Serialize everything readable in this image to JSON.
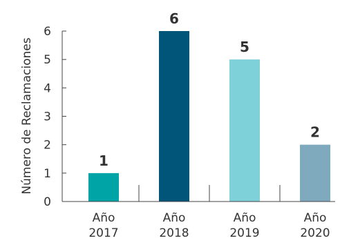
{
  "chart_data": {
    "type": "bar",
    "categories": [
      [
        "Año",
        "2017"
      ],
      [
        "Año",
        "2018"
      ],
      [
        "Año",
        "2019"
      ],
      [
        "Año",
        "2020"
      ]
    ],
    "values": [
      1,
      6,
      5,
      2
    ],
    "data_labels": [
      "1",
      "6",
      "5",
      "2"
    ],
    "bar_colors": [
      "#00a3a6",
      "#005579",
      "#7fd1d9",
      "#7fa9bd"
    ],
    "title": "",
    "xlabel": "",
    "ylabel": "Número de Reclamaciones",
    "ylim": [
      0,
      6
    ],
    "yticks": [
      "0",
      "1",
      "2",
      "3",
      "4",
      "5",
      "6"
    ],
    "grid": false,
    "legend": "none"
  }
}
